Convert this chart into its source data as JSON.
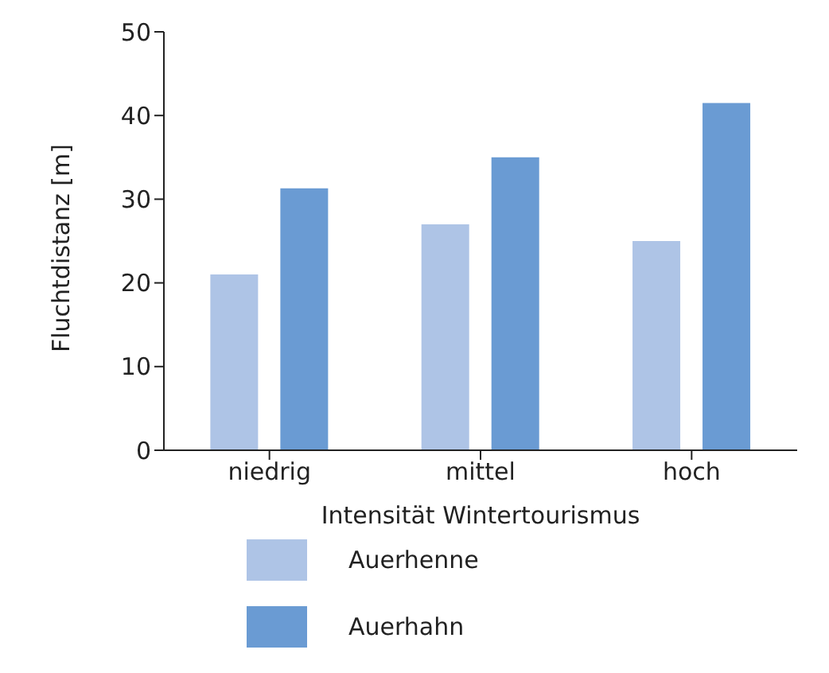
{
  "chart_data": {
    "type": "bar",
    "xlabel": "Intensität Wintertourismus",
    "ylabel": "Fluchtdistanz [m]",
    "categories": [
      "niedrig",
      "mittel",
      "hoch"
    ],
    "series": [
      {
        "name": "Auerhenne",
        "color": "#aec4e6",
        "values": [
          21,
          27,
          25
        ]
      },
      {
        "name": "Auerhahn",
        "color": "#6a9bd3",
        "values": [
          31.3,
          35,
          41.5
        ]
      }
    ],
    "ylim": [
      0,
      50
    ],
    "yticks": [
      0,
      10,
      20,
      30,
      40,
      50
    ],
    "grid": false,
    "legend": "bottom left"
  }
}
